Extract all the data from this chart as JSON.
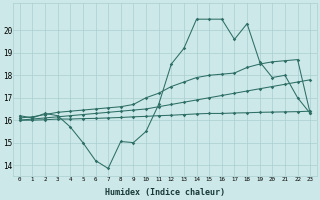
{
  "xlabel": "Humidex (Indice chaleur)",
  "x": [
    0,
    1,
    2,
    3,
    4,
    5,
    6,
    7,
    8,
    9,
    10,
    11,
    12,
    13,
    14,
    15,
    16,
    17,
    18,
    19,
    20,
    21,
    22,
    23
  ],
  "line_peak": [
    16.2,
    16.1,
    16.3,
    16.2,
    15.7,
    15.0,
    14.2,
    13.85,
    15.05,
    15.0,
    15.5,
    16.7,
    18.5,
    19.2,
    20.5,
    20.5,
    20.5,
    19.6,
    20.3,
    18.6,
    17.9,
    18.0,
    17.0,
    16.3
  ],
  "line_upper": [
    16.1,
    16.15,
    16.25,
    16.35,
    16.4,
    16.45,
    16.5,
    16.55,
    16.6,
    16.7,
    17.0,
    17.2,
    17.5,
    17.7,
    17.9,
    18.0,
    18.05,
    18.1,
    18.35,
    18.5,
    18.6,
    18.65,
    18.7,
    16.3
  ],
  "line_mid": [
    16.0,
    16.05,
    16.1,
    16.15,
    16.2,
    16.25,
    16.3,
    16.35,
    16.4,
    16.45,
    16.5,
    16.6,
    16.7,
    16.8,
    16.9,
    17.0,
    17.1,
    17.2,
    17.3,
    17.4,
    17.5,
    17.6,
    17.7,
    17.8
  ],
  "line_flat": [
    16.0,
    16.0,
    16.02,
    16.05,
    16.05,
    16.07,
    16.08,
    16.1,
    16.12,
    16.15,
    16.17,
    16.2,
    16.22,
    16.25,
    16.28,
    16.3,
    16.3,
    16.32,
    16.33,
    16.35,
    16.36,
    16.37,
    16.38,
    16.4
  ],
  "color": "#2d6e65",
  "bg_color": "#cce8e8",
  "grid_color": "#aacfcf",
  "ylim": [
    13.5,
    21.2
  ],
  "xlim": [
    -0.5,
    23.5
  ]
}
